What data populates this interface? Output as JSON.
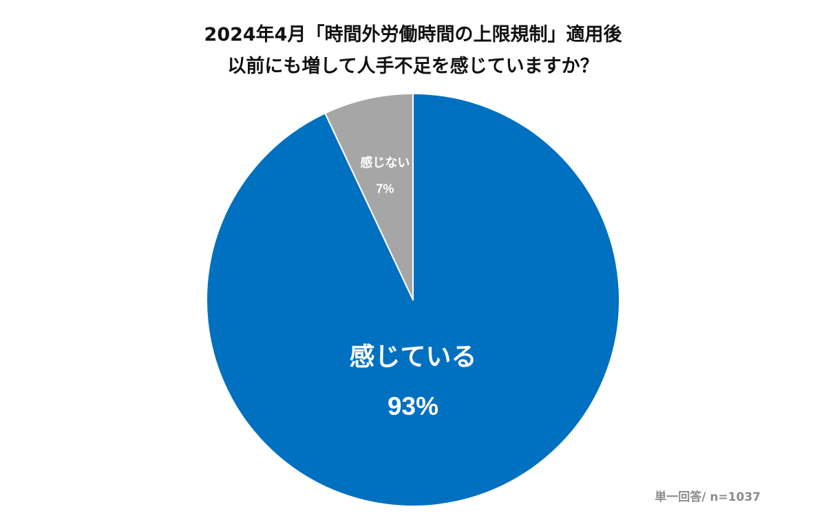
{
  "title_lines": [
    "2024年4月「時間外労働時間の上限規制」適用後",
    "以前にも増して人手不足を感じていますか？"
  ],
  "note": "単一回答/ n=1037",
  "chart_data": {
    "type": "pie",
    "title": "2024年4月「時間外労働時間の上限規制」適用後 以前にも増して人手不足を感じていますか？",
    "start": "12 o'clock",
    "direction": "clockwise",
    "slices": [
      {
        "label": "感じている",
        "value": 93,
        "value_label": "93%",
        "color": "#0070c0",
        "label_color": "#ffffff"
      },
      {
        "label": "感じない",
        "value": 7,
        "value_label": "7%",
        "color": "#a6a6a6",
        "label_color": "#ffffff"
      }
    ],
    "slice_border": "#ffffff"
  }
}
